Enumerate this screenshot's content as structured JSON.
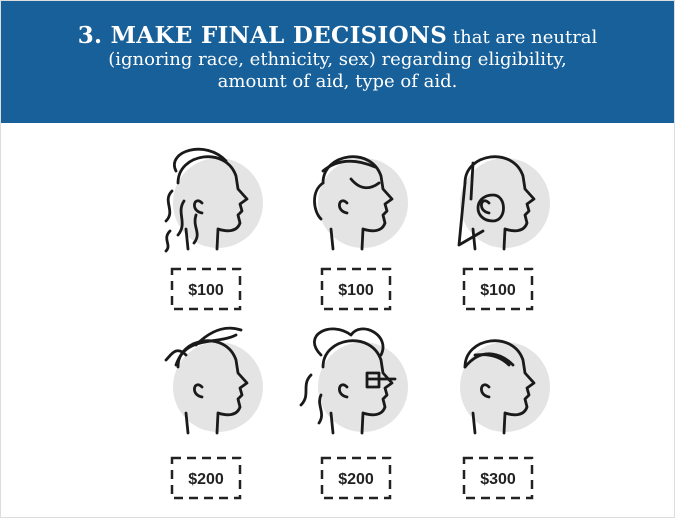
{
  "header": {
    "title_bold": "3. MAKE FINAL DECISIONS",
    "title_rest": "that are neutral (ignoring race, ethnicity, sex) regarding eligibility, amount of aid, type of aid."
  },
  "items": [
    {
      "amount": "$100"
    },
    {
      "amount": "$100"
    },
    {
      "amount": "$100"
    },
    {
      "amount": "$200"
    },
    {
      "amount": "$200"
    },
    {
      "amount": "$300"
    }
  ]
}
